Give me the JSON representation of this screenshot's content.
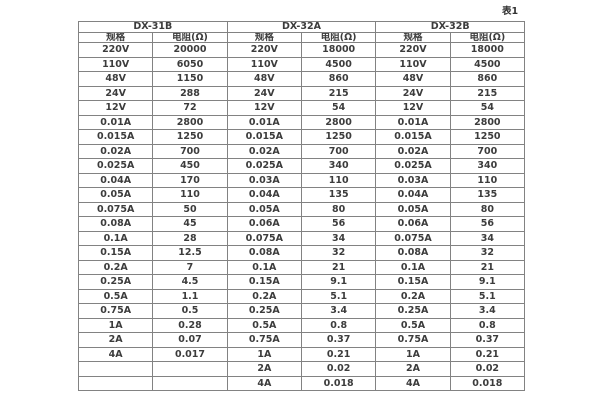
{
  "page": {
    "table_label": "表1",
    "background_color": "#ffffff",
    "border_color": "#828282",
    "text_color": "#3c3c3c"
  },
  "table": {
    "groups": [
      {
        "name": "DX-31B",
        "spec_header": "规格",
        "resistance_header": "电阻(Ω)"
      },
      {
        "name": "DX-32A",
        "spec_header": "规格",
        "resistance_header": "电阻(Ω)"
      },
      {
        "name": "DX-32B",
        "spec_header": "规格",
        "resistance_header": "电阻(Ω)"
      }
    ],
    "rows": [
      [
        "220V",
        "20000",
        "220V",
        "18000",
        "220V",
        "18000"
      ],
      [
        "110V",
        "6050",
        "110V",
        "4500",
        "110V",
        "4500"
      ],
      [
        "48V",
        "1150",
        "48V",
        "860",
        "48V",
        "860"
      ],
      [
        "24V",
        "288",
        "24V",
        "215",
        "24V",
        "215"
      ],
      [
        "12V",
        "72",
        "12V",
        "54",
        "12V",
        "54"
      ],
      [
        "0.01A",
        "2800",
        "0.01A",
        "2800",
        "0.01A",
        "2800"
      ],
      [
        "0.015A",
        "1250",
        "0.015A",
        "1250",
        "0.015A",
        "1250"
      ],
      [
        "0.02A",
        "700",
        "0.02A",
        "700",
        "0.02A",
        "700"
      ],
      [
        "0.025A",
        "450",
        "0.025A",
        "340",
        "0.025A",
        "340"
      ],
      [
        "0.04A",
        "170",
        "0.03A",
        "110",
        "0.03A",
        "110"
      ],
      [
        "0.05A",
        "110",
        "0.04A",
        "135",
        "0.04A",
        "135"
      ],
      [
        "0.075A",
        "50",
        "0.05A",
        "80",
        "0.05A",
        "80"
      ],
      [
        "0.08A",
        "45",
        "0.06A",
        "56",
        "0.06A",
        "56"
      ],
      [
        "0.1A",
        "28",
        "0.075A",
        "34",
        "0.075A",
        "34"
      ],
      [
        "0.15A",
        "12.5",
        "0.08A",
        "32",
        "0.08A",
        "32"
      ],
      [
        "0.2A",
        "7",
        "0.1A",
        "21",
        "0.1A",
        "21"
      ],
      [
        "0.25A",
        "4.5",
        "0.15A",
        "9.1",
        "0.15A",
        "9.1"
      ],
      [
        "0.5A",
        "1.1",
        "0.2A",
        "5.1",
        "0.2A",
        "5.1"
      ],
      [
        "0.75A",
        "0.5",
        "0.25A",
        "3.4",
        "0.25A",
        "3.4"
      ],
      [
        "1A",
        "0.28",
        "0.5A",
        "0.8",
        "0.5A",
        "0.8"
      ],
      [
        "2A",
        "0.07",
        "0.75A",
        "0.37",
        "0.75A",
        "0.37"
      ],
      [
        "4A",
        "0.017",
        "1A",
        "0.21",
        "1A",
        "0.21"
      ],
      [
        "",
        "",
        "2A",
        "0.02",
        "2A",
        "0.02"
      ],
      [
        "",
        "",
        "4A",
        "0.018",
        "4A",
        "0.018"
      ]
    ]
  }
}
